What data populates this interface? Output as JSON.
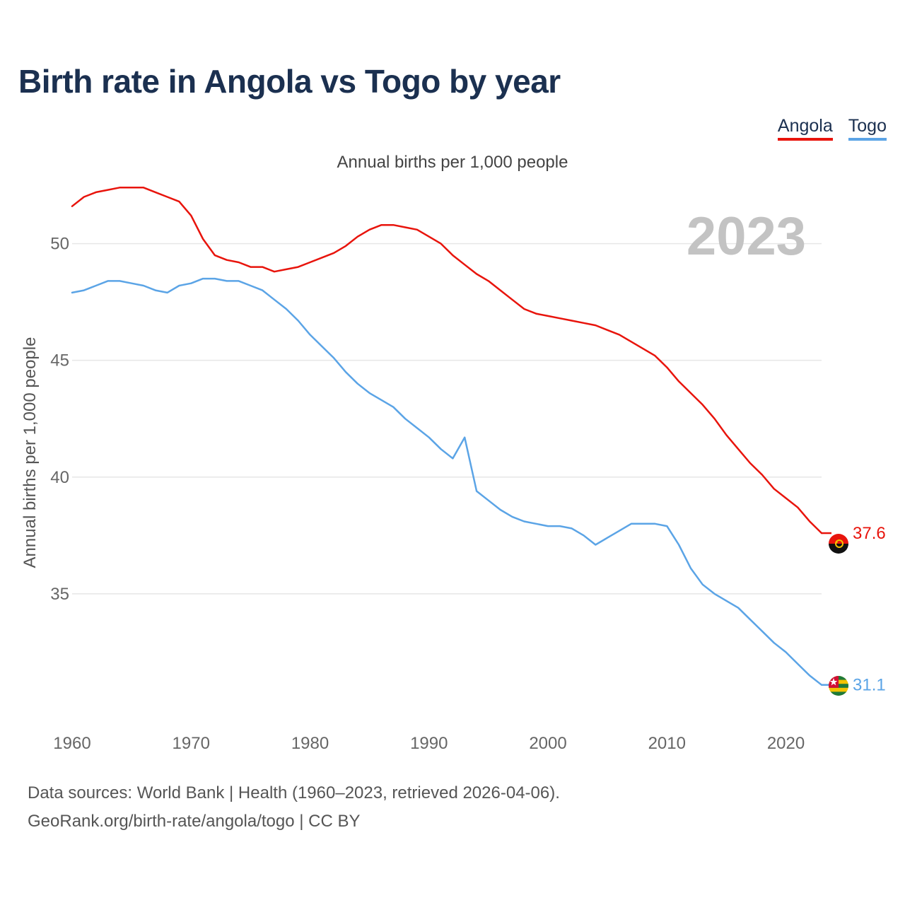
{
  "title": "Birth rate in Angola vs Togo by year",
  "legend": [
    {
      "label": "Angola",
      "color": "#e8140c"
    },
    {
      "label": "Togo",
      "color": "#5ba4e6"
    }
  ],
  "footer": {
    "source": "Data sources: World Bank | Health (1960–2023, retrieved 2026-04-06).",
    "url": "GeoRank.org/birth-rate/angola/togo | CC BY"
  },
  "chart_data": {
    "type": "line",
    "title": "Birth rate in Angola vs Togo by year",
    "subtitle": "Annual births per 1,000 people",
    "xlabel": "",
    "ylabel": "Annual births per 1,000 people",
    "year_label": "2023",
    "xlim": [
      1960,
      2023
    ],
    "ylim": [
      30,
      53.5
    ],
    "x_ticks": [
      1960,
      1970,
      1980,
      1990,
      2000,
      2010,
      2020
    ],
    "y_ticks": [
      35,
      40,
      45,
      50
    ],
    "grid": true,
    "legend_position": "top-right",
    "x": [
      1960,
      1961,
      1962,
      1963,
      1964,
      1965,
      1966,
      1967,
      1968,
      1969,
      1970,
      1971,
      1972,
      1973,
      1974,
      1975,
      1976,
      1977,
      1978,
      1979,
      1980,
      1981,
      1982,
      1983,
      1984,
      1985,
      1986,
      1987,
      1988,
      1989,
      1990,
      1991,
      1992,
      1993,
      1994,
      1995,
      1996,
      1997,
      1998,
      1999,
      2000,
      2001,
      2002,
      2003,
      2004,
      2005,
      2006,
      2007,
      2008,
      2009,
      2010,
      2011,
      2012,
      2013,
      2014,
      2015,
      2016,
      2017,
      2018,
      2019,
      2020,
      2021,
      2022,
      2023
    ],
    "series": [
      {
        "name": "Angola",
        "color": "#e8140c",
        "end_label": "37.6",
        "values": [
          51.6,
          52.0,
          52.2,
          52.3,
          52.4,
          52.4,
          52.4,
          52.2,
          52.0,
          51.8,
          51.2,
          50.2,
          49.5,
          49.3,
          49.2,
          49.0,
          49.0,
          48.8,
          48.9,
          49.0,
          49.2,
          49.4,
          49.6,
          49.9,
          50.3,
          50.6,
          50.8,
          50.8,
          50.7,
          50.6,
          50.3,
          50.0,
          49.5,
          49.1,
          48.7,
          48.4,
          48.0,
          47.6,
          47.2,
          47.0,
          46.9,
          46.8,
          46.7,
          46.6,
          46.5,
          46.3,
          46.1,
          45.8,
          45.5,
          45.2,
          44.7,
          44.1,
          43.6,
          43.1,
          42.5,
          41.8,
          41.2,
          40.6,
          40.1,
          39.5,
          39.1,
          38.7,
          38.1,
          37.6
        ]
      },
      {
        "name": "Togo",
        "color": "#5ba4e6",
        "end_label": "31.1",
        "values": [
          47.9,
          48.0,
          48.2,
          48.4,
          48.4,
          48.3,
          48.2,
          48.0,
          47.9,
          48.2,
          48.3,
          48.5,
          48.5,
          48.4,
          48.4,
          48.2,
          48.0,
          47.6,
          47.2,
          46.7,
          46.1,
          45.6,
          45.1,
          44.5,
          44.0,
          43.6,
          43.3,
          43.0,
          42.5,
          42.1,
          41.7,
          41.2,
          40.8,
          41.7,
          39.4,
          39.0,
          38.6,
          38.3,
          38.1,
          38.0,
          37.9,
          37.9,
          37.8,
          37.5,
          37.1,
          37.4,
          37.7,
          38.0,
          38.0,
          38.0,
          37.9,
          37.1,
          36.1,
          35.4,
          35.0,
          34.7,
          34.4,
          33.9,
          33.4,
          32.9,
          32.5,
          32.0,
          31.5,
          31.1
        ]
      }
    ]
  }
}
